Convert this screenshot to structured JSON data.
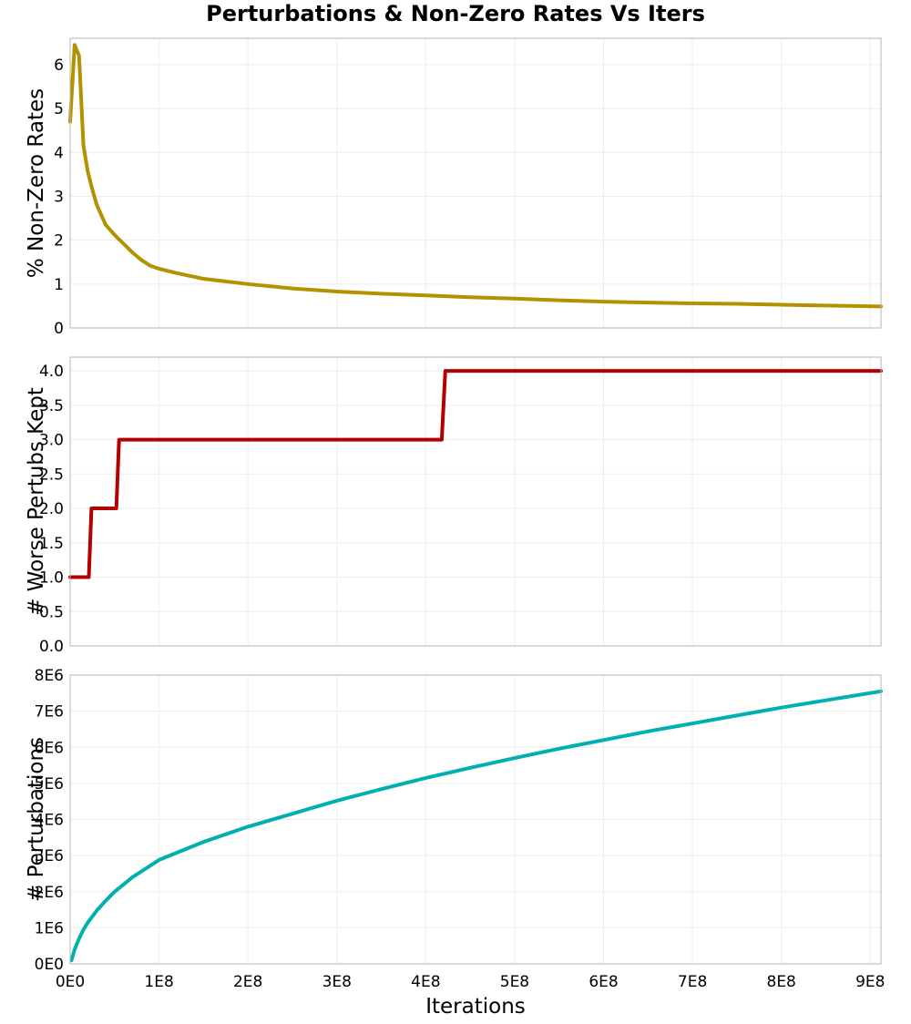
{
  "chart_data": {
    "type": "line",
    "title": "Perturbations & Non-Zero Rates Vs Iters",
    "xlabel": "Iterations",
    "xlim": [
      0,
      912000000
    ],
    "x_ticks": [
      0,
      100000000,
      200000000,
      300000000,
      400000000,
      500000000,
      600000000,
      700000000,
      800000000,
      900000000
    ],
    "x_tick_labels": [
      "0E0",
      "1E8",
      "2E8",
      "3E8",
      "4E8",
      "5E8",
      "6E8",
      "7E8",
      "8E8",
      "9E8"
    ],
    "grid": true,
    "panels": [
      {
        "ylabel": "% Non-Zero Rates",
        "ylim": [
          0,
          6.6
        ],
        "y_ticks": [
          0,
          1,
          2,
          3,
          4,
          5,
          6
        ],
        "y_tick_labels": [
          "0",
          "1",
          "2",
          "3",
          "4",
          "5",
          "6"
        ],
        "series": [
          {
            "color": "#b39200",
            "x": [
              0,
              5000000,
              10000000,
              15000000,
              20000000,
              25000000,
              30000000,
              40000000,
              50000000,
              60000000,
              70000000,
              80000000,
              90000000,
              100000000,
              120000000,
              150000000,
              200000000,
              250000000,
              300000000,
              350000000,
              400000000,
              450000000,
              500000000,
              550000000,
              600000000,
              650000000,
              700000000,
              750000000,
              800000000,
              850000000,
              912000000
            ],
            "values": [
              4.7,
              6.45,
              6.2,
              4.15,
              3.55,
              3.15,
              2.8,
              2.35,
              2.12,
              1.92,
              1.72,
              1.55,
              1.42,
              1.35,
              1.25,
              1.12,
              1.0,
              0.9,
              0.83,
              0.78,
              0.74,
              0.7,
              0.67,
              0.63,
              0.6,
              0.58,
              0.56,
              0.55,
              0.53,
              0.51,
              0.49
            ]
          }
        ]
      },
      {
        "ylabel": "# Worse Pertubs Kept",
        "ylim": [
          0,
          4.2
        ],
        "y_ticks": [
          0,
          0.5,
          1,
          1.5,
          2,
          2.5,
          3,
          3.5,
          4
        ],
        "y_tick_labels": [
          "0.0",
          "0.5",
          "1.0",
          "1.5",
          "2.0",
          "2.5",
          "3.0",
          "3.5",
          "4.0"
        ],
        "series": [
          {
            "color": "#b30000",
            "x": [
              0,
              21000000,
              24000000,
              52000000,
              55000000,
              418000000,
              422000000,
              912000000
            ],
            "values": [
              1,
              1,
              2,
              2,
              3,
              3,
              4,
              4
            ]
          }
        ]
      },
      {
        "ylabel": "# Perturbations",
        "ylim": [
          0,
          8000000
        ],
        "y_ticks": [
          0,
          1000000,
          2000000,
          3000000,
          4000000,
          5000000,
          6000000,
          7000000,
          8000000
        ],
        "y_tick_labels": [
          "0E0",
          "1E6",
          "2E6",
          "3E6",
          "4E6",
          "5E6",
          "6E6",
          "7E6",
          "8E6"
        ],
        "series": [
          {
            "color": "#00b0b0",
            "x": [
              1500000,
              5000000,
              10000000,
              15000000,
              20000000,
              30000000,
              40000000,
              50000000,
              70000000,
              100000000,
              150000000,
              200000000,
              250000000,
              300000000,
              350000000,
              400000000,
              450000000,
              500000000,
              550000000,
              600000000,
              650000000,
              700000000,
              750000000,
              800000000,
              850000000,
              912000000
            ],
            "values": [
              100000,
              400000,
              700000,
              950000,
              1150000,
              1480000,
              1750000,
              2000000,
              2400000,
              2880000,
              3380000,
              3800000,
              4160000,
              4520000,
              4840000,
              5150000,
              5430000,
              5700000,
              5960000,
              6200000,
              6440000,
              6660000,
              6880000,
              7100000,
              7300000,
              7550000
            ]
          }
        ]
      }
    ]
  }
}
